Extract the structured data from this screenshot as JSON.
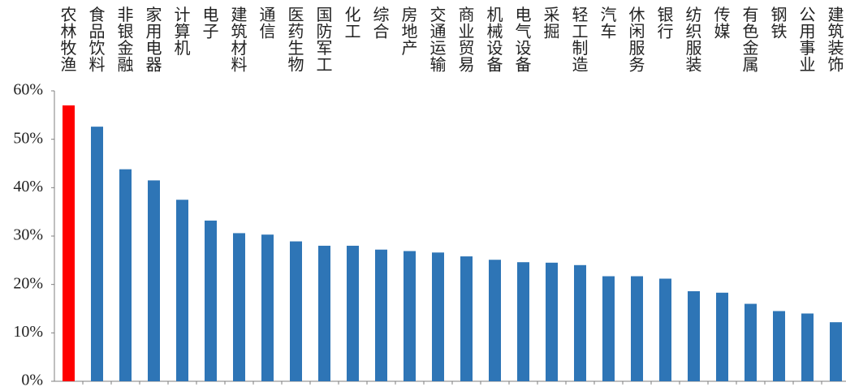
{
  "chart_data": {
    "type": "bar",
    "categories": [
      "农林牧渔",
      "食品饮料",
      "非银金融",
      "家用电器",
      "计算机",
      "电子",
      "建筑材料",
      "通信",
      "医药生物",
      "国防军工",
      "化工",
      "综合",
      "房地产",
      "交通运输",
      "商业贸易",
      "机械设备",
      "电气设备",
      "采掘",
      "轻工制造",
      "汽车",
      "休闲服务",
      "银行",
      "纺织服装",
      "传媒",
      "有色金属",
      "钢铁",
      "公用事业",
      "建筑装饰"
    ],
    "values": [
      57.0,
      52.6,
      43.8,
      41.5,
      37.5,
      33.2,
      30.6,
      30.3,
      28.9,
      28.0,
      28.0,
      27.2,
      26.9,
      26.6,
      25.8,
      25.1,
      24.6,
      24.5,
      24.0,
      21.7,
      21.7,
      21.2,
      18.6,
      18.3,
      16.0,
      14.5,
      14.0,
      12.2
    ],
    "ylim": [
      0,
      60
    ],
    "yticks": [
      0,
      10,
      20,
      30,
      40,
      50,
      60
    ],
    "ytick_labels": [
      "0%",
      "10%",
      "20%",
      "30%",
      "40%",
      "50%",
      "60%"
    ],
    "legend": "none",
    "grid": false,
    "colors": {
      "highlight": "#ff0000",
      "default": "#2e75b6",
      "axis": "#7f7f7f"
    },
    "highlight_index": 0
  }
}
